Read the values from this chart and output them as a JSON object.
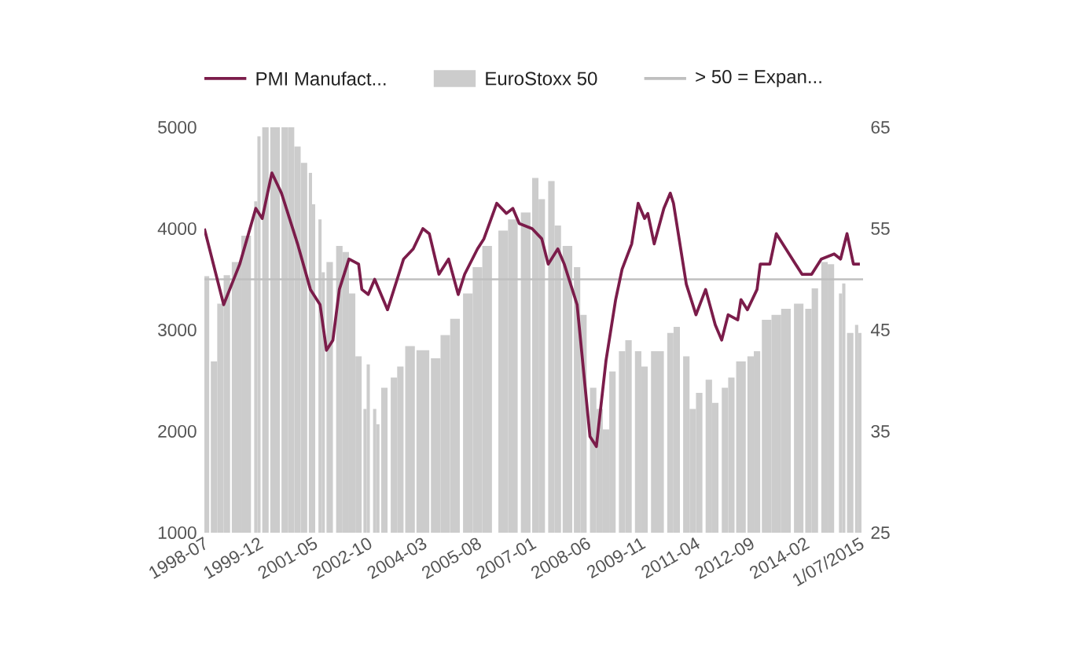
{
  "chart_data": {
    "type": "line",
    "legend": "top",
    "xlim": [
      "1998-07",
      "2015-08"
    ],
    "xticks": [
      {
        "value": "1998-07",
        "label": "1998-07"
      },
      {
        "value": "1999-12",
        "label": "1999-12"
      },
      {
        "value": "2001-05",
        "label": "2001-05"
      },
      {
        "value": "2002-10",
        "label": "2002-10"
      },
      {
        "value": "2004-03",
        "label": "2004-03"
      },
      {
        "value": "2005-08",
        "label": "2005-08"
      },
      {
        "value": "2007-01",
        "label": "2007-01"
      },
      {
        "value": "2008-06",
        "label": "2008-06"
      },
      {
        "value": "2009-11",
        "label": "2009-11"
      },
      {
        "value": "2011-04",
        "label": "2011-04"
      },
      {
        "value": "2012-09",
        "label": "2012-09"
      },
      {
        "value": "2014-02",
        "label": "2014-02"
      },
      {
        "value": "2015-07",
        "label": "1/07/2015"
      }
    ],
    "ylim": [
      1000,
      5000
    ],
    "yticks": [
      1000,
      2000,
      3000,
      4000,
      5000
    ],
    "y2lim": [
      25,
      65
    ],
    "y2ticks": [
      25,
      35,
      45,
      55,
      65
    ],
    "series": [
      {
        "name": "PMI Manufact...",
        "axis": "y2",
        "color": "#7b1c4a",
        "x": [
          "1998-07",
          "1999-01",
          "1999-06",
          "1999-11",
          "2000-01",
          "2000-04",
          "2000-07",
          "2000-12",
          "2001-04",
          "2001-07",
          "2001-09",
          "2001-11",
          "2002-01",
          "2002-04",
          "2002-07",
          "2002-08",
          "2002-10",
          "2002-12",
          "2003-04",
          "2003-09",
          "2003-12",
          "2004-03",
          "2004-05",
          "2004-08",
          "2004-11",
          "2005-02",
          "2005-04",
          "2005-08",
          "2005-10",
          "2006-02",
          "2006-05",
          "2006-07",
          "2006-09",
          "2007-01",
          "2007-04",
          "2007-06",
          "2007-09",
          "2007-11",
          "2008-03",
          "2008-07",
          "2008-09",
          "2008-12",
          "2009-03",
          "2009-05",
          "2009-08",
          "2009-10",
          "2009-12",
          "2010-01",
          "2010-03",
          "2010-06",
          "2010-08",
          "2010-09",
          "2011-01",
          "2011-04",
          "2011-07",
          "2011-10",
          "2011-12",
          "2012-02",
          "2012-05",
          "2012-06",
          "2012-08",
          "2012-11",
          "2012-12",
          "2013-03",
          "2013-05",
          "2013-08",
          "2013-11",
          "2014-01",
          "2014-04",
          "2014-07",
          "2014-11",
          "2015-01",
          "2015-03",
          "2015-05",
          "2015-07"
        ],
        "values": [
          55,
          47.5,
          51.5,
          57,
          56,
          60.5,
          58.5,
          53.5,
          49,
          47.5,
          43,
          44,
          49,
          52,
          51.5,
          49,
          48.5,
          50,
          47,
          52,
          53,
          55,
          54.5,
          50.5,
          52,
          48.5,
          50.5,
          53,
          54,
          57.5,
          56.5,
          57,
          55.5,
          55,
          54,
          51.5,
          53,
          51.5,
          47.5,
          34.5,
          33.5,
          42,
          48,
          51,
          53.5,
          57.5,
          56,
          56.5,
          53.5,
          57,
          58.5,
          57.5,
          49.5,
          46.5,
          49,
          45.5,
          44,
          46.5,
          46,
          48,
          47,
          49,
          51.5,
          51.5,
          54.5,
          53,
          51.5,
          50.5,
          50.5,
          52,
          52.5,
          52,
          54.5,
          51.5,
          51.5
        ]
      },
      {
        "name": "EuroStoxx 50",
        "type": "bar",
        "color": "#cccccc",
        "x": [
          "1998-07",
          "1998-10",
          "1998-12",
          "1999-02",
          "1999-05",
          "1999-08",
          "1999-11",
          "1999-12",
          "2000-02",
          "2000-05",
          "2000-08",
          "2000-10",
          "2000-12",
          "2001-02",
          "2001-04",
          "2001-05",
          "2001-07",
          "2001-08",
          "2001-10",
          "2002-01",
          "2002-03",
          "2002-05",
          "2002-07",
          "2002-09",
          "2002-10",
          "2002-12",
          "2003-01",
          "2003-03",
          "2003-06",
          "2003-08",
          "2003-11",
          "2004-03",
          "2004-07",
          "2004-10",
          "2005-01",
          "2005-05",
          "2005-08",
          "2005-11",
          "2006-04",
          "2006-07",
          "2006-11",
          "2007-02",
          "2007-04",
          "2007-07",
          "2007-09",
          "2007-12",
          "2008-03",
          "2008-05",
          "2008-08",
          "2008-10",
          "2008-12",
          "2009-02",
          "2009-05",
          "2009-07",
          "2009-10",
          "2009-12",
          "2010-04",
          "2010-08",
          "2010-10",
          "2011-01",
          "2011-03",
          "2011-05",
          "2011-08",
          "2011-10",
          "2012-01",
          "2012-03",
          "2012-06",
          "2012-09",
          "2012-11",
          "2013-02",
          "2013-05",
          "2013-08",
          "2013-12",
          "2014-03",
          "2014-05",
          "2014-08",
          "2014-10",
          "2015-01",
          "2015-02",
          "2015-04",
          "2015-06",
          "2015-07"
        ],
        "values": [
          3530,
          2690,
          3260,
          3540,
          3670,
          3930,
          4270,
          4910,
          5000,
          5000,
          5000,
          5000,
          4810,
          4650,
          4550,
          4240,
          4090,
          3570,
          3670,
          3830,
          3770,
          3360,
          2740,
          2220,
          2660,
          2220,
          2070,
          2430,
          2530,
          2640,
          2840,
          2800,
          2720,
          2950,
          3110,
          3360,
          3620,
          3830,
          3980,
          4090,
          4160,
          4500,
          4290,
          4470,
          4030,
          3830,
          3620,
          3150,
          2430,
          2220,
          2020,
          2590,
          2790,
          2900,
          2790,
          2640,
          2790,
          2970,
          3030,
          2740,
          2220,
          2380,
          2510,
          2280,
          2430,
          2530,
          2690,
          2740,
          2790,
          3100,
          3150,
          3210,
          3260,
          3210,
          3410,
          3670,
          3650,
          3360,
          3460,
          2970,
          3050,
          2970
        ]
      }
    ],
    "ref_lines": [
      {
        "axis": "y2",
        "value": 50,
        "label": "> 50 = Expan...",
        "color": "#bfbfbf"
      }
    ]
  }
}
